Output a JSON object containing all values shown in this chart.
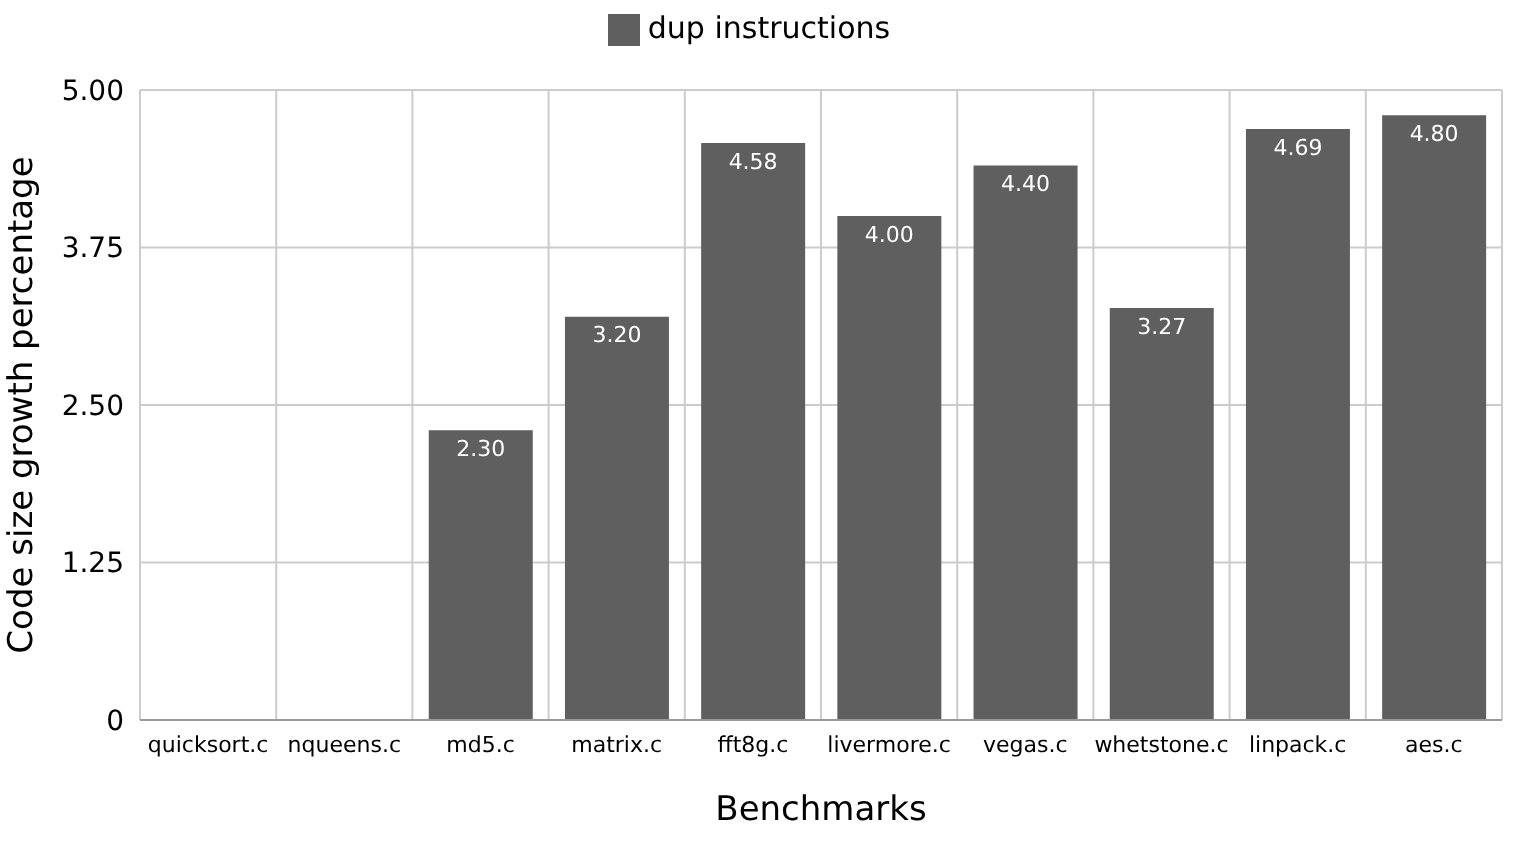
{
  "chart_data": {
    "type": "bar",
    "xlabel": "Benchmarks",
    "ylabel": "Code size growth percentage",
    "categories": [
      "quicksort.c",
      "nqueens.c",
      "md5.c",
      "matrix.c",
      "fft8g.c",
      "livermore.c",
      "vegas.c",
      "whetstone.c",
      "linpack.c",
      "aes.c"
    ],
    "series": [
      {
        "name": "dup instructions",
        "color": "#5f5f5f",
        "values": [
          0,
          0,
          2.3,
          3.2,
          4.58,
          4.0,
          4.4,
          3.27,
          4.69,
          4.8
        ],
        "value_labels": [
          null,
          null,
          "2.30",
          "3.20",
          "4.58",
          "4.00",
          "4.40",
          "3.27",
          "4.69",
          "4.80"
        ]
      }
    ],
    "ylim": [
      0,
      5
    ],
    "yticks": [
      {
        "value": 0,
        "label": "0"
      },
      {
        "value": 1.25,
        "label": "1.25"
      },
      {
        "value": 2.5,
        "label": "2.50"
      },
      {
        "value": 3.75,
        "label": "3.75"
      },
      {
        "value": 5,
        "label": "5.00"
      }
    ],
    "grid": true,
    "legend": "top"
  }
}
